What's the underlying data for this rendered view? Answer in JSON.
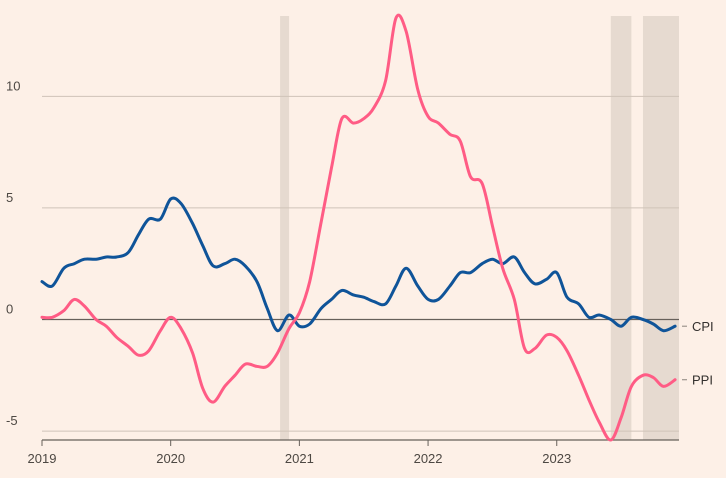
{
  "chart_data": {
    "type": "line",
    "title": "",
    "xlabel": "",
    "ylabel": "",
    "x_ticks": [
      "2019",
      "2020",
      "2021",
      "2022",
      "2023"
    ],
    "y_ticks": [
      "10",
      "5",
      "0",
      "-5"
    ],
    "xlim": [
      2019.0,
      2023.95
    ],
    "ylim": [
      -5.4,
      13.6
    ],
    "shaded_periods": [
      [
        2020.85,
        2020.92
      ],
      [
        2023.42,
        2023.58
      ],
      [
        2023.67,
        2023.95
      ]
    ],
    "series": [
      {
        "name": "CPI",
        "color": "#0f5499",
        "points": [
          [
            2019.0,
            1.7
          ],
          [
            2019.08,
            1.5
          ],
          [
            2019.17,
            2.3
          ],
          [
            2019.25,
            2.5
          ],
          [
            2019.33,
            2.7
          ],
          [
            2019.42,
            2.7
          ],
          [
            2019.5,
            2.8
          ],
          [
            2019.58,
            2.8
          ],
          [
            2019.67,
            3.0
          ],
          [
            2019.75,
            3.8
          ],
          [
            2019.83,
            4.5
          ],
          [
            2019.92,
            4.5
          ],
          [
            2020.0,
            5.4
          ],
          [
            2020.08,
            5.2
          ],
          [
            2020.17,
            4.3
          ],
          [
            2020.25,
            3.3
          ],
          [
            2020.33,
            2.4
          ],
          [
            2020.42,
            2.5
          ],
          [
            2020.5,
            2.7
          ],
          [
            2020.58,
            2.4
          ],
          [
            2020.67,
            1.7
          ],
          [
            2020.75,
            0.5
          ],
          [
            2020.83,
            -0.5
          ],
          [
            2020.92,
            0.2
          ],
          [
            2021.0,
            -0.3
          ],
          [
            2021.08,
            -0.2
          ],
          [
            2021.17,
            0.5
          ],
          [
            2021.25,
            0.9
          ],
          [
            2021.33,
            1.3
          ],
          [
            2021.42,
            1.1
          ],
          [
            2021.5,
            1.0
          ],
          [
            2021.58,
            0.8
          ],
          [
            2021.67,
            0.7
          ],
          [
            2021.75,
            1.5
          ],
          [
            2021.83,
            2.3
          ],
          [
            2021.92,
            1.5
          ],
          [
            2022.0,
            0.9
          ],
          [
            2022.08,
            0.9
          ],
          [
            2022.17,
            1.5
          ],
          [
            2022.25,
            2.1
          ],
          [
            2022.33,
            2.1
          ],
          [
            2022.42,
            2.5
          ],
          [
            2022.5,
            2.7
          ],
          [
            2022.58,
            2.5
          ],
          [
            2022.67,
            2.8
          ],
          [
            2022.75,
            2.1
          ],
          [
            2022.83,
            1.6
          ],
          [
            2022.92,
            1.8
          ],
          [
            2023.0,
            2.1
          ],
          [
            2023.08,
            1.0
          ],
          [
            2023.17,
            0.7
          ],
          [
            2023.25,
            0.1
          ],
          [
            2023.33,
            0.2
          ],
          [
            2023.42,
            0.0
          ],
          [
            2023.5,
            -0.3
          ],
          [
            2023.58,
            0.1
          ],
          [
            2023.67,
            0.0
          ],
          [
            2023.75,
            -0.2
          ],
          [
            2023.83,
            -0.5
          ],
          [
            2023.92,
            -0.3
          ]
        ]
      },
      {
        "name": "PPI",
        "color": "#ff5c85",
        "points": [
          [
            2019.0,
            0.1
          ],
          [
            2019.08,
            0.1
          ],
          [
            2019.17,
            0.4
          ],
          [
            2019.25,
            0.9
          ],
          [
            2019.33,
            0.6
          ],
          [
            2019.42,
            0.0
          ],
          [
            2019.5,
            -0.3
          ],
          [
            2019.58,
            -0.8
          ],
          [
            2019.67,
            -1.2
          ],
          [
            2019.75,
            -1.6
          ],
          [
            2019.83,
            -1.4
          ],
          [
            2019.92,
            -0.5
          ],
          [
            2020.0,
            0.1
          ],
          [
            2020.08,
            -0.4
          ],
          [
            2020.17,
            -1.5
          ],
          [
            2020.25,
            -3.1
          ],
          [
            2020.33,
            -3.7
          ],
          [
            2020.42,
            -3.0
          ],
          [
            2020.5,
            -2.5
          ],
          [
            2020.58,
            -2.0
          ],
          [
            2020.67,
            -2.1
          ],
          [
            2020.75,
            -2.1
          ],
          [
            2020.83,
            -1.5
          ],
          [
            2020.92,
            -0.4
          ],
          [
            2021.0,
            0.3
          ],
          [
            2021.08,
            1.7
          ],
          [
            2021.17,
            4.4
          ],
          [
            2021.25,
            6.8
          ],
          [
            2021.33,
            9.0
          ],
          [
            2021.42,
            8.8
          ],
          [
            2021.5,
            9.0
          ],
          [
            2021.58,
            9.5
          ],
          [
            2021.67,
            10.7
          ],
          [
            2021.75,
            13.5
          ],
          [
            2021.83,
            12.9
          ],
          [
            2021.92,
            10.3
          ],
          [
            2022.0,
            9.1
          ],
          [
            2022.08,
            8.8
          ],
          [
            2022.17,
            8.3
          ],
          [
            2022.25,
            8.0
          ],
          [
            2022.33,
            6.4
          ],
          [
            2022.42,
            6.1
          ],
          [
            2022.5,
            4.2
          ],
          [
            2022.58,
            2.3
          ],
          [
            2022.67,
            0.9
          ],
          [
            2022.75,
            -1.3
          ],
          [
            2022.83,
            -1.3
          ],
          [
            2022.92,
            -0.7
          ],
          [
            2023.0,
            -0.8
          ],
          [
            2023.08,
            -1.4
          ],
          [
            2023.17,
            -2.5
          ],
          [
            2023.25,
            -3.6
          ],
          [
            2023.33,
            -4.6
          ],
          [
            2023.42,
            -5.4
          ],
          [
            2023.5,
            -4.4
          ],
          [
            2023.58,
            -3.0
          ],
          [
            2023.67,
            -2.5
          ],
          [
            2023.75,
            -2.6
          ],
          [
            2023.83,
            -3.0
          ],
          [
            2023.92,
            -2.7
          ]
        ]
      }
    ]
  }
}
